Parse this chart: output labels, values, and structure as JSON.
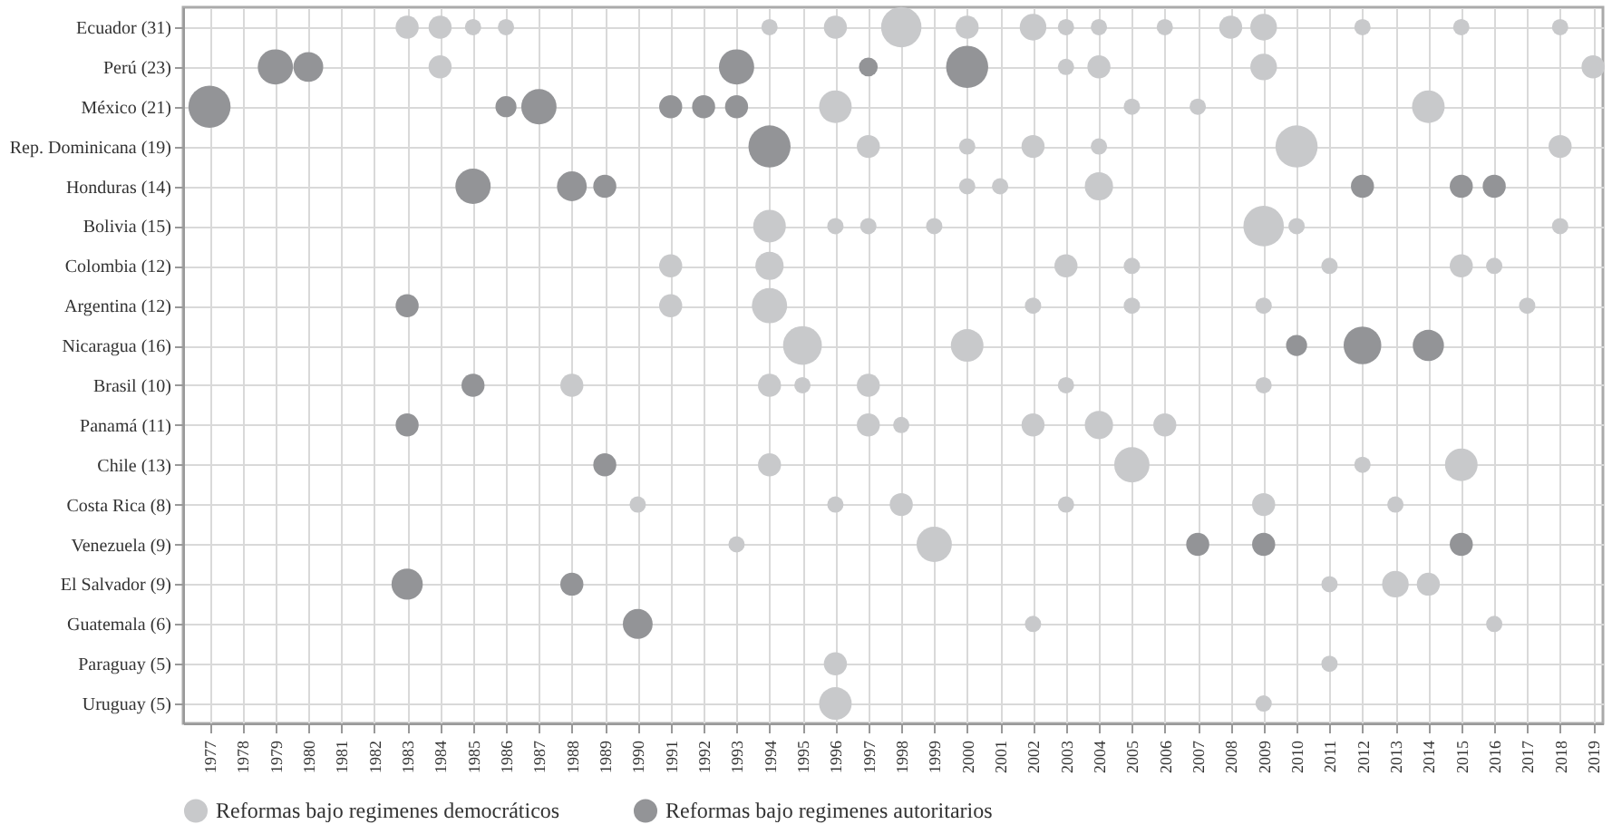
{
  "chart_data": {
    "type": "bubble",
    "orientation": "horizontal",
    "categories": [
      "Ecuador (31)",
      "Perú (23)",
      "México (21)",
      "Rep. Dominicana (19)",
      "Honduras (14)",
      "Bolivia (15)",
      "Colombia (12)",
      "Argentina (12)",
      "Nicaragua (16)",
      "Brasil (10)",
      "Panamá (11)",
      "Chile (13)",
      "Costa Rica (8)",
      "Venezuela (9)",
      "El Salvador (9)",
      "Guatemala (6)",
      "Paraguay (5)",
      "Uruguay (5)"
    ],
    "xlim": [
      1976.2,
      2019.3
    ],
    "xticks": [
      1977,
      1978,
      1979,
      1980,
      1981,
      1982,
      1983,
      1984,
      1985,
      1986,
      1987,
      1988,
      1989,
      1990,
      1991,
      1992,
      1993,
      1994,
      1995,
      1996,
      1997,
      1998,
      1999,
      2000,
      2001,
      2002,
      2003,
      2004,
      2005,
      2006,
      2007,
      2008,
      2009,
      2010,
      2011,
      2012,
      2013,
      2014,
      2015,
      2016,
      2017,
      2018,
      2019
    ],
    "grid": true,
    "legend": "bottom",
    "marker": "circle",
    "series": [
      {
        "name": "Reformas bajo regimenes democráticos",
        "color": "#c8c9cb",
        "values": [
          1983,
          1984,
          1996,
          1997,
          2000,
          1994,
          1991,
          1991,
          1995,
          1988,
          1997,
          1994,
          1990,
          1993,
          2011,
          2002,
          1996,
          1996
        ],
        "sizes": [
          0.3,
          0.3,
          0.6,
          0.3,
          0.15,
          0.6,
          0.3,
          0.3,
          0.85,
          0.3,
          0.3,
          0.3,
          0.15,
          0.15,
          0.15,
          0.15,
          0.3,
          0.6
        ]
      },
      {
        "color": "#c8c9cb",
        "values": [
          1984,
          2003,
          2005,
          2000,
          2001,
          1996,
          1994,
          1994,
          2000,
          1994,
          1998,
          2005,
          1996,
          1999,
          2013,
          2016,
          2011,
          2009
        ],
        "sizes": [
          0.3,
          0.15,
          0.15,
          0.15,
          0.15,
          0.15,
          0.45,
          0.7,
          0.6,
          0.3,
          0.15,
          0.7,
          0.15,
          0.7,
          0.4,
          0.15,
          0.15,
          0.15
        ]
      },
      {
        "color": "#c8c9cb",
        "values": [
          1985,
          2004,
          2007,
          2002,
          2004,
          1997,
          2003,
          2002,
          null,
          1995,
          2002,
          2012,
          1998,
          null,
          2014,
          null,
          null,
          null
        ],
        "sizes": [
          0.15,
          0.3,
          0.15,
          0.3,
          0.45,
          0.15,
          0.3,
          0.15,
          null,
          0.15,
          0.3,
          0.15,
          0.3,
          null,
          0.3,
          null,
          null,
          null
        ]
      },
      {
        "color": "#c8c9cb",
        "values": [
          1986,
          2009,
          2014,
          2004,
          null,
          1999,
          2005,
          2005,
          null,
          1997,
          2004,
          2015,
          2003,
          null,
          null,
          null,
          null,
          null
        ],
        "sizes": [
          0.15,
          0.4,
          0.6,
          0.15,
          null,
          0.15,
          0.15,
          0.15,
          null,
          0.3,
          0.45,
          0.6,
          0.15,
          null,
          null,
          null,
          null,
          null
        ]
      },
      {
        "color": "#c8c9cb",
        "values": [
          1994,
          2019,
          null,
          2010,
          null,
          2009,
          2011,
          2009,
          null,
          2003,
          2006,
          null,
          2009,
          null,
          null,
          null,
          null,
          null
        ],
        "sizes": [
          0.15,
          0.3,
          null,
          1,
          null,
          0.92,
          0.15,
          0.15,
          null,
          0.15,
          0.3,
          null,
          0.3,
          null,
          null,
          null,
          null,
          null
        ]
      },
      {
        "color": "#c8c9cb",
        "values": [
          1996,
          null,
          null,
          2018,
          null,
          2010,
          2015,
          2017,
          null,
          2009,
          null,
          null,
          2013,
          null,
          null,
          null,
          null,
          null
        ],
        "sizes": [
          0.3,
          null,
          null,
          0.3,
          null,
          0.15,
          0.3,
          0.15,
          null,
          0.15,
          null,
          null,
          0.15,
          null,
          null,
          null,
          null,
          null
        ]
      },
      {
        "color": "#c8c9cb",
        "values": [
          1998,
          null,
          null,
          null,
          null,
          2018,
          2016,
          null,
          null,
          null,
          null,
          null,
          null,
          null,
          null,
          null,
          null,
          null
        ],
        "sizes": [
          0.92,
          null,
          null,
          null,
          null,
          0.15,
          0.15,
          null,
          null,
          null,
          null,
          null,
          null,
          null,
          null,
          null,
          null,
          null
        ]
      },
      {
        "color": "#c8c9cb",
        "values": [
          2000,
          null,
          null,
          null,
          null,
          null,
          null,
          null,
          null,
          null,
          null,
          null,
          null,
          null,
          null,
          null,
          null,
          null
        ],
        "sizes": [
          0.3,
          null,
          null,
          null,
          null,
          null,
          null,
          null,
          null,
          null,
          null,
          null,
          null,
          null,
          null,
          null,
          null,
          null
        ]
      },
      {
        "color": "#c8c9cb",
        "values": [
          2002,
          null,
          null,
          null,
          null,
          null,
          null,
          null,
          null,
          null,
          null,
          null,
          null,
          null,
          null,
          null,
          null,
          null
        ],
        "sizes": [
          0.4,
          null,
          null,
          null,
          null,
          null,
          null,
          null,
          null,
          null,
          null,
          null,
          null,
          null,
          null,
          null,
          null,
          null
        ]
      },
      {
        "color": "#c8c9cb",
        "values": [
          2003,
          null,
          null,
          null,
          null,
          null,
          null,
          null,
          null,
          null,
          null,
          null,
          null,
          null,
          null,
          null,
          null,
          null
        ],
        "sizes": [
          0.15,
          null,
          null,
          null,
          null,
          null,
          null,
          null,
          null,
          null,
          null,
          null,
          null,
          null,
          null,
          null,
          null,
          null
        ]
      },
      {
        "color": "#c8c9cb",
        "values": [
          2004,
          null,
          null,
          null,
          null,
          null,
          null,
          null,
          null,
          null,
          null,
          null,
          null,
          null,
          null,
          null,
          null,
          null
        ],
        "sizes": [
          0.15,
          null,
          null,
          null,
          null,
          null,
          null,
          null,
          null,
          null,
          null,
          null,
          null,
          null,
          null,
          null,
          null,
          null
        ]
      },
      {
        "color": "#c8c9cb",
        "values": [
          2006,
          null,
          null,
          null,
          null,
          null,
          null,
          null,
          null,
          null,
          null,
          null,
          null,
          null,
          null,
          null,
          null,
          null
        ],
        "sizes": [
          0.15,
          null,
          null,
          null,
          null,
          null,
          null,
          null,
          null,
          null,
          null,
          null,
          null,
          null,
          null,
          null,
          null,
          null
        ]
      },
      {
        "color": "#c8c9cb",
        "values": [
          2008,
          null,
          null,
          null,
          null,
          null,
          null,
          null,
          null,
          null,
          null,
          null,
          null,
          null,
          null,
          null,
          null,
          null
        ],
        "sizes": [
          0.3,
          null,
          null,
          null,
          null,
          null,
          null,
          null,
          null,
          null,
          null,
          null,
          null,
          null,
          null,
          null,
          null,
          null
        ]
      },
      {
        "color": "#c8c9cb",
        "values": [
          2009,
          null,
          null,
          null,
          null,
          null,
          null,
          null,
          null,
          null,
          null,
          null,
          null,
          null,
          null,
          null,
          null,
          null
        ],
        "sizes": [
          0.4,
          null,
          null,
          null,
          null,
          null,
          null,
          null,
          null,
          null,
          null,
          null,
          null,
          null,
          null,
          null,
          null,
          null
        ]
      },
      {
        "color": "#c8c9cb",
        "values": [
          2012,
          null,
          null,
          null,
          null,
          null,
          null,
          null,
          null,
          null,
          null,
          null,
          null,
          null,
          null,
          null,
          null,
          null
        ],
        "sizes": [
          0.15,
          null,
          null,
          null,
          null,
          null,
          null,
          null,
          null,
          null,
          null,
          null,
          null,
          null,
          null,
          null,
          null,
          null
        ]
      },
      {
        "color": "#c8c9cb",
        "values": [
          2015,
          null,
          null,
          null,
          null,
          null,
          null,
          null,
          null,
          null,
          null,
          null,
          null,
          null,
          null,
          null,
          null,
          null
        ],
        "sizes": [
          0.15,
          null,
          null,
          null,
          null,
          null,
          null,
          null,
          null,
          null,
          null,
          null,
          null,
          null,
          null,
          null,
          null,
          null
        ]
      },
      {
        "color": "#c8c9cb",
        "values": [
          2018,
          null,
          null,
          null,
          null,
          null,
          null,
          null,
          null,
          null,
          null,
          null,
          null,
          null,
          null,
          null,
          null,
          null
        ],
        "sizes": [
          0.15,
          null,
          null,
          null,
          null,
          null,
          null,
          null,
          null,
          null,
          null,
          null,
          null,
          null,
          null,
          null,
          null,
          null
        ]
      },
      {
        "name": "Reformas bajo regimenes autoritarios",
        "color": "#939497",
        "values": [
          null,
          1979,
          1977,
          1994,
          1985,
          null,
          null,
          1983,
          2010,
          1985,
          1983,
          1989,
          null,
          2007,
          1983,
          1990,
          null,
          null
        ],
        "sizes": [
          null,
          0.7,
          1,
          1,
          0.7,
          null,
          null,
          0.3,
          0.25,
          0.3,
          0.3,
          0.3,
          null,
          0.3,
          0.55,
          0.5,
          null,
          null
        ]
      },
      {
        "color": "#939497",
        "values": [
          null,
          1980,
          1986,
          null,
          1988,
          null,
          null,
          null,
          2012,
          null,
          null,
          null,
          null,
          2009,
          1988,
          null,
          null,
          null
        ],
        "sizes": [
          null,
          0.5,
          0.25,
          null,
          0.5,
          null,
          null,
          null,
          0.8,
          null,
          null,
          null,
          null,
          0.3,
          0.3,
          null,
          null,
          null
        ]
      },
      {
        "color": "#939497",
        "values": [
          null,
          1993,
          1987,
          null,
          1989,
          null,
          null,
          null,
          2014,
          null,
          null,
          null,
          null,
          2015,
          null,
          null,
          null,
          null
        ],
        "sizes": [
          null,
          0.7,
          0.7,
          null,
          0.3,
          null,
          null,
          null,
          0.55,
          null,
          null,
          null,
          null,
          0.3,
          null,
          null,
          null,
          null
        ]
      },
      {
        "color": "#939497",
        "values": [
          null,
          1997,
          1991,
          null,
          2012,
          null,
          null,
          null,
          null,
          null,
          null,
          null,
          null,
          null,
          null,
          null,
          null,
          null
        ],
        "sizes": [
          null,
          0.2,
          0.3,
          null,
          0.3,
          null,
          null,
          null,
          null,
          null,
          null,
          null,
          null,
          null,
          null,
          null,
          null,
          null
        ]
      },
      {
        "color": "#939497",
        "values": [
          null,
          2000,
          1992,
          null,
          2015,
          null,
          null,
          null,
          null,
          null,
          null,
          null,
          null,
          null,
          null,
          null,
          null,
          null
        ],
        "sizes": [
          null,
          1,
          0.3,
          null,
          0.3,
          null,
          null,
          null,
          null,
          null,
          null,
          null,
          null,
          null,
          null,
          null,
          null,
          null
        ]
      },
      {
        "color": "#939497",
        "values": [
          null,
          null,
          1993,
          null,
          2016,
          null,
          null,
          null,
          null,
          null,
          null,
          null,
          null,
          null,
          null,
          null,
          null,
          null
        ],
        "sizes": [
          null,
          null,
          0.3,
          null,
          0.3,
          null,
          null,
          null,
          null,
          null,
          null,
          null,
          null,
          null,
          null,
          null,
          null,
          null
        ]
      }
    ]
  }
}
